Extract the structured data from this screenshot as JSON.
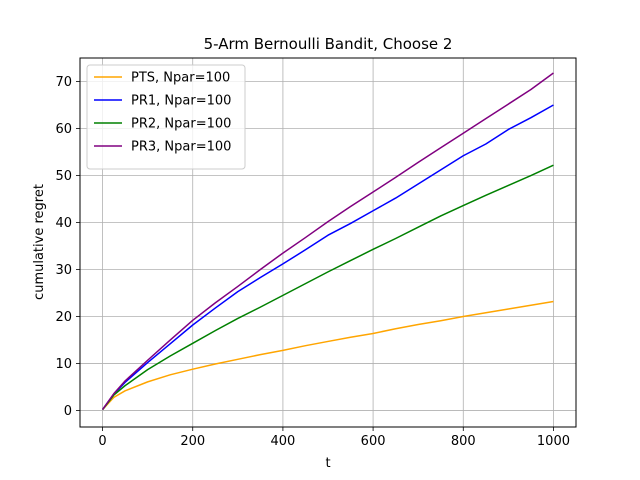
{
  "chart_data": {
    "type": "line",
    "title": "5-Arm Bernoulli Bandit, Choose 2",
    "xlabel": "t",
    "ylabel": "cumulative regret",
    "xlim": [
      -50,
      1050
    ],
    "ylim": [
      -3.5,
      75
    ],
    "xticks": [
      0,
      200,
      400,
      600,
      800,
      1000
    ],
    "yticks": [
      0,
      10,
      20,
      30,
      40,
      50,
      60,
      70
    ],
    "grid": true,
    "legend_position": "upper-left",
    "x": [
      0,
      25,
      50,
      100,
      150,
      200,
      250,
      300,
      350,
      400,
      450,
      500,
      550,
      600,
      650,
      700,
      750,
      800,
      850,
      900,
      950,
      1000
    ],
    "series": [
      {
        "name": "PTS, Npar=100",
        "color": "#ffa500",
        "values": [
          0.2,
          2.8,
          4.2,
          6.1,
          7.6,
          8.8,
          9.9,
          10.9,
          11.9,
          12.8,
          13.8,
          14.7,
          15.6,
          16.4,
          17.4,
          18.3,
          19.1,
          20.0,
          20.8,
          21.6,
          22.4,
          23.2
        ]
      },
      {
        "name": "PR1, Npar=100",
        "color": "#0000ff",
        "values": [
          0.2,
          3.5,
          6.0,
          10.2,
          14.2,
          18.2,
          21.8,
          25.3,
          28.3,
          31.2,
          34.2,
          37.3,
          39.8,
          42.5,
          45.2,
          48.2,
          51.2,
          54.2,
          56.7,
          59.8,
          62.3,
          65.0
        ]
      },
      {
        "name": "PR2, Npar=100",
        "color": "#008000",
        "values": [
          0.2,
          3.3,
          5.3,
          8.7,
          11.6,
          14.3,
          17.0,
          19.6,
          22.0,
          24.5,
          27.0,
          29.5,
          31.9,
          34.3,
          36.6,
          39.0,
          41.4,
          43.6,
          45.8,
          47.9,
          50.0,
          52.2
        ]
      },
      {
        "name": "PR3, Npar=100",
        "color": "#800080",
        "values": [
          0.2,
          3.6,
          6.3,
          10.7,
          15.0,
          19.2,
          22.9,
          26.4,
          30.0,
          33.5,
          36.8,
          40.2,
          43.4,
          46.5,
          49.6,
          52.8,
          55.9,
          59.0,
          62.1,
          65.2,
          68.3,
          71.8
        ]
      }
    ]
  }
}
